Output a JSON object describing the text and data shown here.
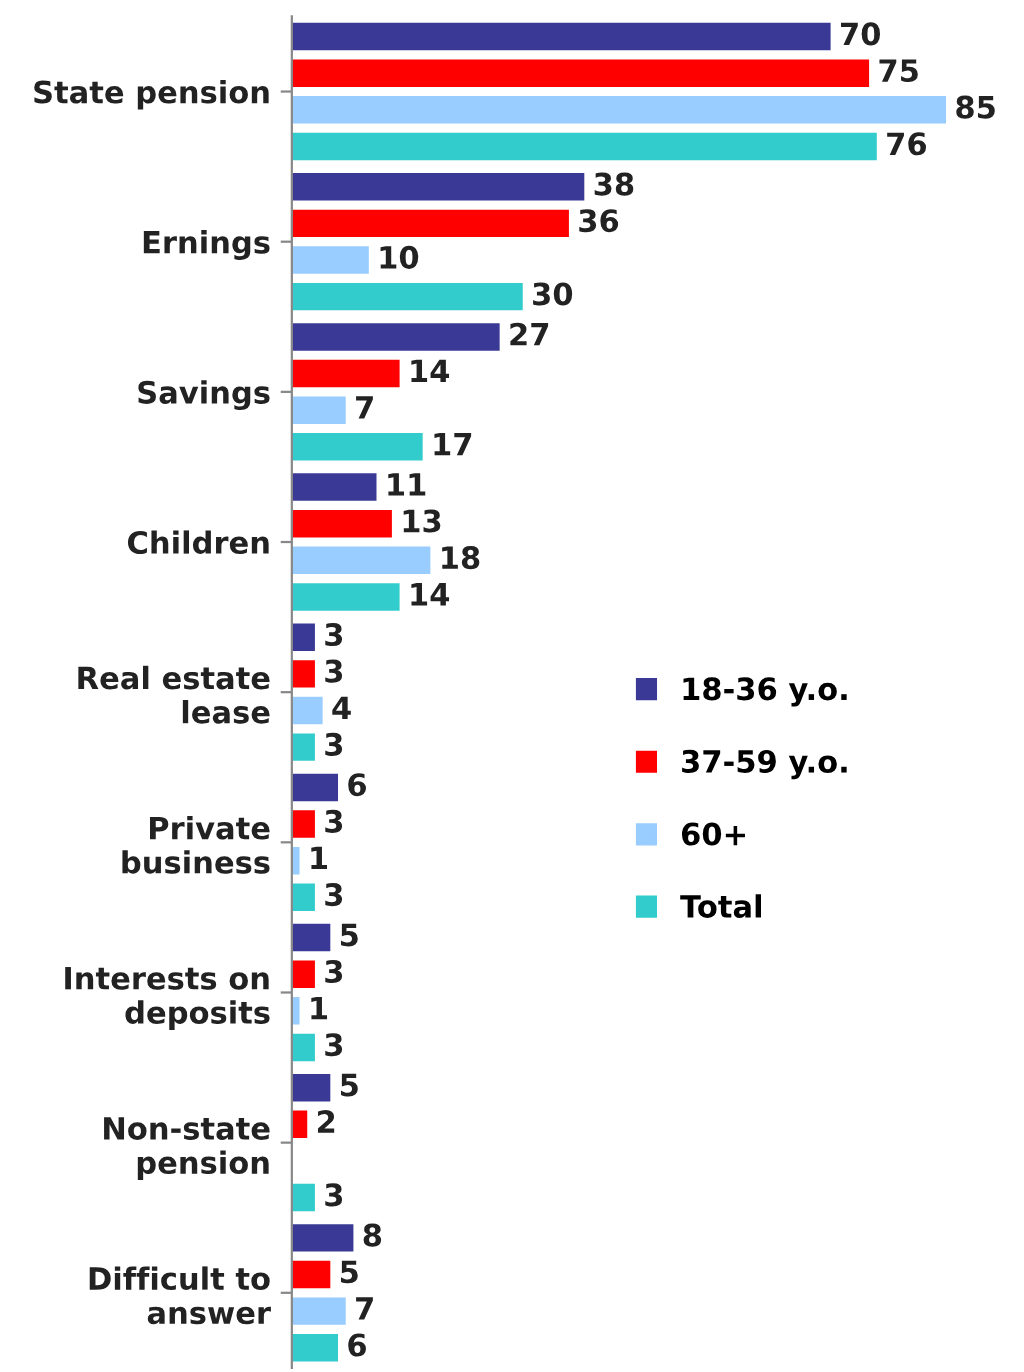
{
  "chart_data": {
    "type": "bar",
    "orientation": "horizontal",
    "data_labels": true,
    "legend": "right",
    "grid": false,
    "categories": [
      "State pension",
      "Ernings",
      "Savings",
      "Children",
      "Real estate\nlease",
      "Private\nbusiness",
      "Interests on\ndeposits",
      "Non-state\npension",
      "Difficult to\nanswer"
    ],
    "series": [
      {
        "name": "18-36 y.o.",
        "color": "#3a3a96",
        "values": [
          70,
          38,
          27,
          11,
          3,
          6,
          5,
          5,
          8
        ]
      },
      {
        "name": "37-59 y.o.",
        "color": "#ff0000",
        "values": [
          75,
          36,
          14,
          13,
          3,
          3,
          3,
          2,
          5
        ]
      },
      {
        "name": "60+",
        "color": "#99ccff",
        "values": [
          85,
          10,
          7,
          18,
          4,
          1,
          1,
          null,
          7
        ]
      },
      {
        "name": "Total",
        "color": "#33cccc",
        "values": [
          76,
          30,
          17,
          14,
          3,
          3,
          3,
          3,
          6
        ]
      }
    ]
  }
}
